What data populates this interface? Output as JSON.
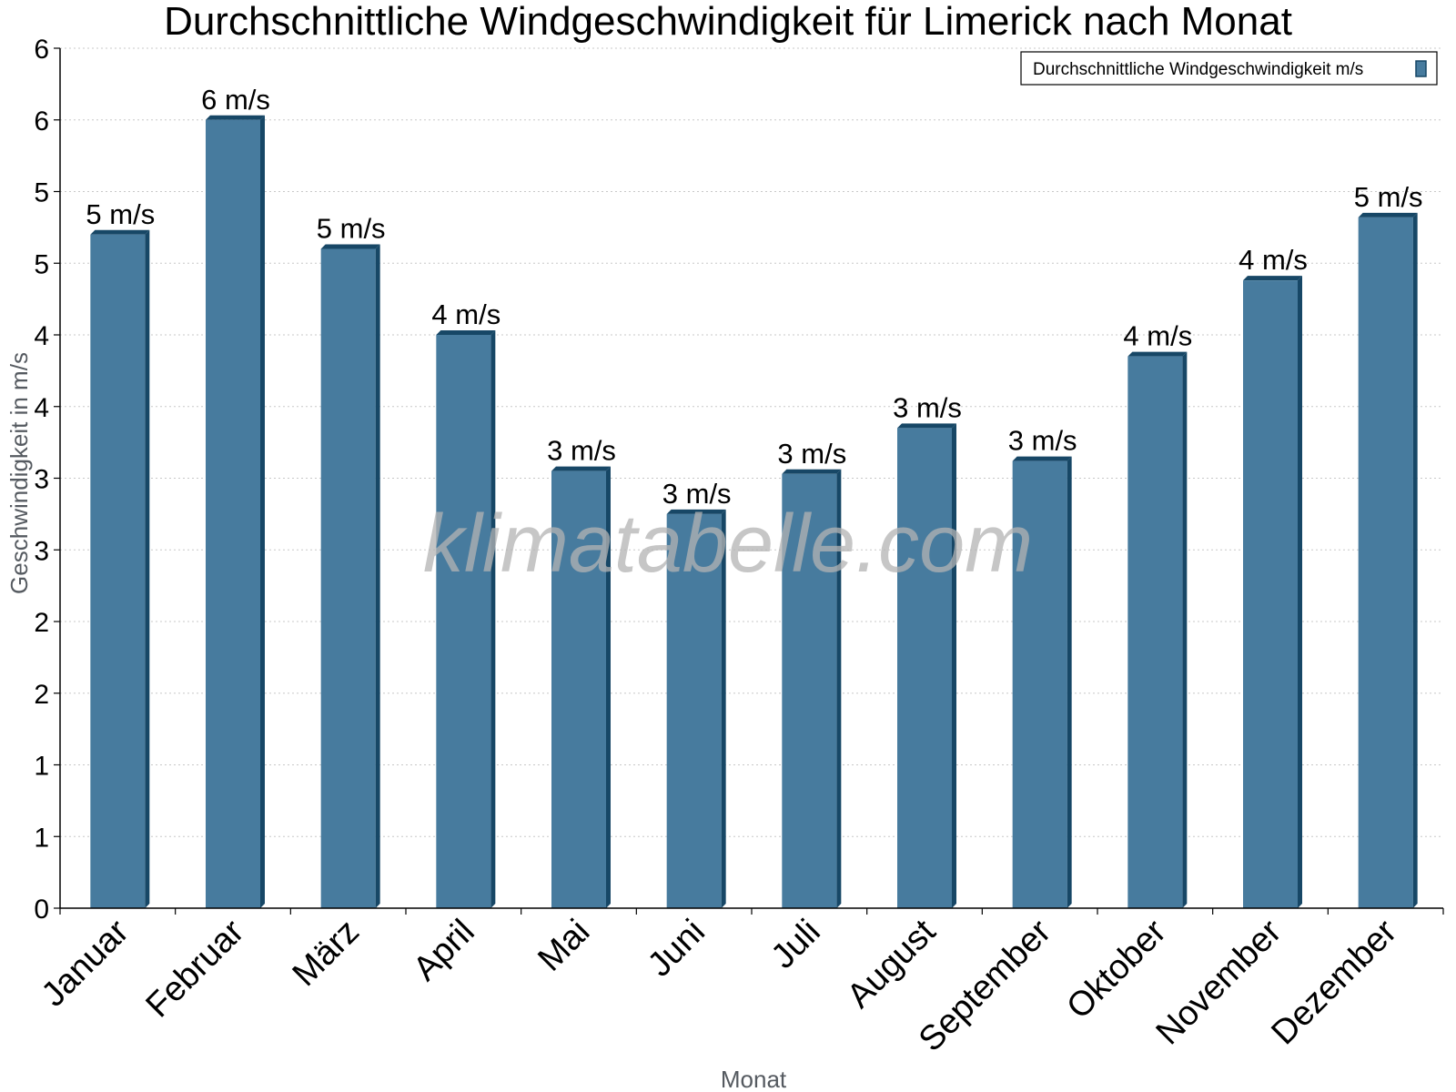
{
  "chart_data": {
    "type": "bar",
    "title": "Durchschnittliche Windgeschwindigkeit für Limerick nach Monat",
    "xlabel": "Monat",
    "ylabel": "Geschwindigkeit in m/s",
    "categories": [
      "Januar",
      "Februar",
      "März",
      "April",
      "Mai",
      "Juni",
      "Juli",
      "August",
      "September",
      "Oktober",
      "November",
      "Dezember"
    ],
    "series": [
      {
        "name": "Durchschnittliche Windgeschwindigkeit m/s",
        "values": [
          4.7,
          5.5,
          4.6,
          4.0,
          3.05,
          2.75,
          3.03,
          3.35,
          3.12,
          3.85,
          4.38,
          4.82
        ],
        "data_labels": [
          "5 m/s",
          "6 m/s",
          "5 m/s",
          "4 m/s",
          "3 m/s",
          "3 m/s",
          "3 m/s",
          "3 m/s",
          "3 m/s",
          "4 m/s",
          "4 m/s",
          "5 m/s"
        ]
      }
    ],
    "ylim": [
      0,
      6
    ],
    "y_ticks": [
      0,
      0.5,
      1,
      1.5,
      2,
      2.5,
      3,
      3.5,
      4,
      4.5,
      5,
      5.5,
      6
    ],
    "y_tick_labels": [
      "0",
      "1",
      "1",
      "2",
      "2",
      "3",
      "3",
      "4",
      "4",
      "5",
      "5",
      "6",
      "6"
    ],
    "grid": true,
    "legend_position": "top-right",
    "watermark": "klimatabelle.com",
    "colors": {
      "bar": "#477b9e",
      "bar_side": "#174766",
      "grid": "#c8c8c8"
    }
  }
}
